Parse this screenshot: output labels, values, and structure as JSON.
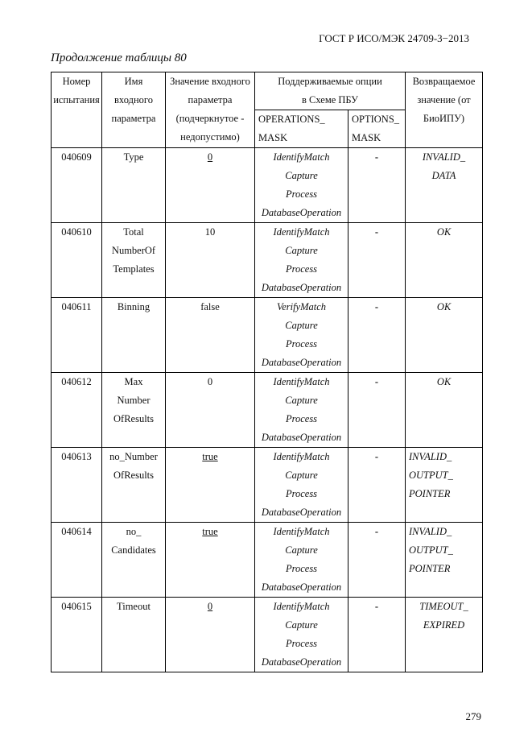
{
  "header": "ГОСТ Р ИСО/МЭК 24709-3−2013",
  "caption": "Продолжение таблицы 80",
  "columns": {
    "test_no": [
      "Номер",
      "испытания"
    ],
    "param_name": [
      "Имя",
      "входного",
      "параметра"
    ],
    "param_value": [
      "Значение входного",
      "параметра",
      "(подчеркнутое -",
      "недопустимо)"
    ],
    "options": [
      "Поддерживаемые опции",
      "в Схеме ПБУ"
    ],
    "operations_mask": [
      "OPERATIONS_",
      "MASK"
    ],
    "options_mask": [
      "OPTIONS_",
      "MASK"
    ],
    "return": [
      "Возвращаемое",
      "значение (от",
      "БиоИПУ)"
    ]
  },
  "rows": [
    {
      "no": "040609",
      "name": [
        "Type"
      ],
      "value": "0",
      "invalid": true,
      "ops": [
        "IdentifyMatch",
        "Capture",
        "Process",
        "DatabaseOperation"
      ],
      "opt": "-",
      "ret": [
        "INVALID_",
        "DATA"
      ],
      "ret_align": "center"
    },
    {
      "no": "040610",
      "name": [
        "Total",
        "NumberOf",
        "Templates"
      ],
      "value": "10",
      "invalid": false,
      "ops": [
        "IdentifyMatch",
        "Capture",
        "Process",
        "DatabaseOperation"
      ],
      "opt": "-",
      "ret": [
        "OK"
      ],
      "ret_align": "center"
    },
    {
      "no": "040611",
      "name": [
        "Binning"
      ],
      "value": "false",
      "invalid": false,
      "ops": [
        "VerifyMatch",
        "Capture",
        "Process",
        "DatabaseOperation"
      ],
      "opt": "-",
      "ret": [
        "OK"
      ],
      "ret_align": "center"
    },
    {
      "no": "040612",
      "name": [
        "Max",
        "Number",
        "OfResults"
      ],
      "value": "0",
      "invalid": false,
      "ops": [
        "IdentifyMatch",
        "Capture",
        "Process",
        "DatabaseOperation"
      ],
      "opt": "-",
      "ret": [
        "OK"
      ],
      "ret_align": "center"
    },
    {
      "no": "040613",
      "name": [
        "no_Number",
        "OfResults"
      ],
      "value": "true",
      "invalid": true,
      "ops": [
        "IdentifyMatch",
        "Capture",
        "Process",
        "DatabaseOperation"
      ],
      "opt": "-",
      "ret": [
        "INVALID_",
        "OUTPUT_",
        "POINTER"
      ],
      "ret_align": "left"
    },
    {
      "no": "040614",
      "name": [
        "no_",
        "Candidates"
      ],
      "value": "true",
      "invalid": true,
      "ops": [
        "IdentifyMatch",
        "Capture",
        "Process",
        "DatabaseOperation"
      ],
      "opt": "-",
      "ret": [
        "INVALID_",
        "OUTPUT_",
        "POINTER"
      ],
      "ret_align": "left"
    },
    {
      "no": "040615",
      "name": [
        "Timeout"
      ],
      "value": "0",
      "invalid": true,
      "ops": [
        "IdentifyMatch",
        "Capture",
        "Process",
        "DatabaseOperation"
      ],
      "opt": "-",
      "ret": [
        "TIMEOUT_",
        "EXPIRED"
      ],
      "ret_align": "center"
    }
  ],
  "page_number": "279"
}
